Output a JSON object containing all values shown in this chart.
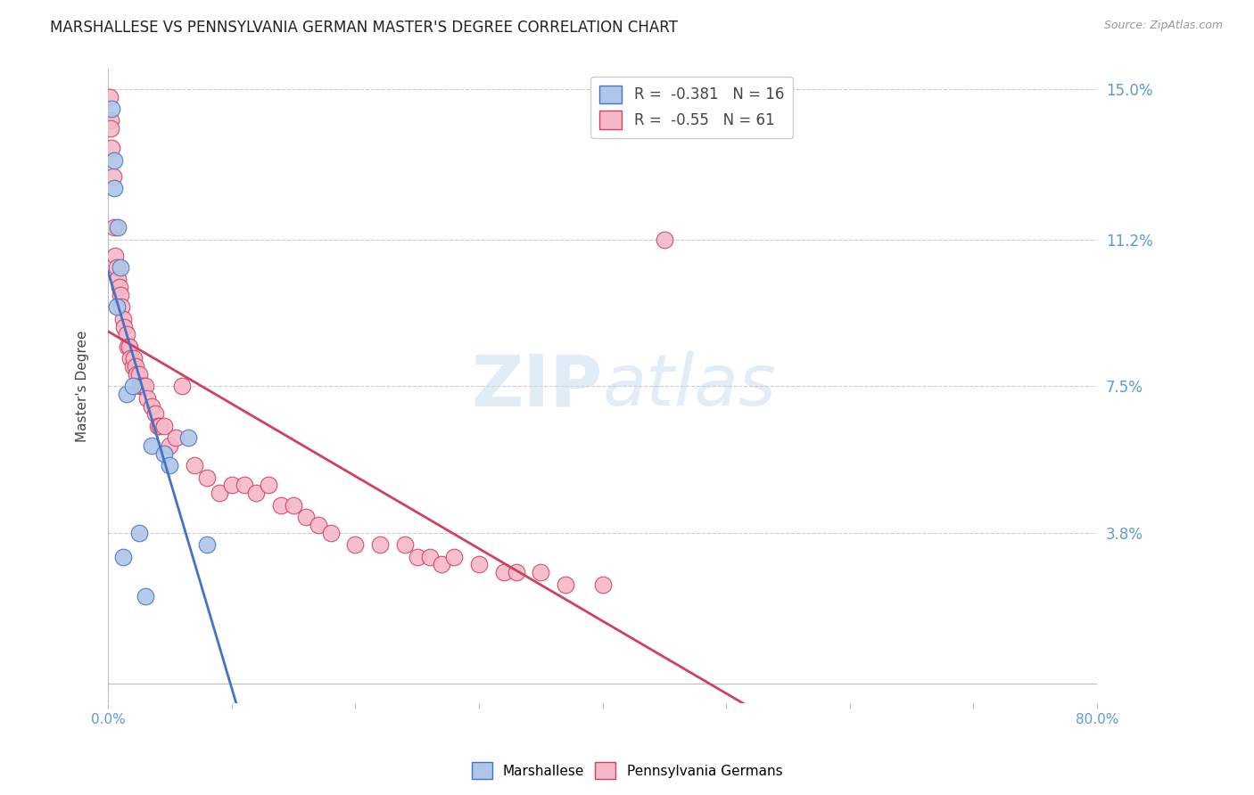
{
  "title": "MARSHALLESE VS PENNSYLVANIA GERMAN MASTER'S DEGREE CORRELATION CHART",
  "source": "Source: ZipAtlas.com",
  "ylabel": "Master's Degree",
  "r_marshallese": -0.381,
  "n_marshallese": 16,
  "r_penn_german": -0.55,
  "n_penn_german": 61,
  "xlim": [
    0.0,
    80.0
  ],
  "ylim": [
    -0.5,
    15.5
  ],
  "ytick_vals": [
    3.8,
    7.5,
    11.2,
    15.0
  ],
  "ytick_labels": [
    "3.8%",
    "7.5%",
    "11.2%",
    "15.0%"
  ],
  "xtick_vals": [
    0.0,
    10.0,
    20.0,
    30.0,
    40.0,
    50.0,
    60.0,
    70.0,
    80.0
  ],
  "xtick_labels": [
    "0.0%",
    "",
    "",
    "",
    "",
    "",
    "",
    "",
    "80.0%"
  ],
  "color_marshallese_fill": "#aec6e8",
  "color_marshallese_edge": "#4472c4",
  "color_penn_fill": "#f4b8c8",
  "color_penn_edge": "#d04060",
  "color_line_blue": "#4472c4",
  "color_line_pink": "#d04060",
  "color_axis_blue": "#5b9bd5",
  "background_color": "#ffffff",
  "marshallese_x": [
    0.3,
    0.5,
    0.5,
    0.7,
    0.8,
    1.0,
    1.5,
    2.0,
    3.5,
    4.5,
    5.0,
    6.5,
    8.0,
    2.5,
    1.2,
    3.0
  ],
  "marshallese_y": [
    14.5,
    13.2,
    12.5,
    9.5,
    11.5,
    10.5,
    7.3,
    7.5,
    6.0,
    5.8,
    5.5,
    6.2,
    3.5,
    3.8,
    3.2,
    2.2
  ],
  "penn_german_x": [
    0.1,
    0.2,
    0.2,
    0.3,
    0.4,
    0.5,
    0.6,
    0.7,
    0.8,
    0.9,
    1.0,
    1.1,
    1.2,
    1.3,
    1.5,
    1.6,
    1.7,
    1.8,
    2.0,
    2.1,
    2.2,
    2.3,
    2.5,
    2.6,
    2.8,
    3.0,
    3.2,
    3.5,
    3.8,
    4.0,
    4.2,
    4.5,
    5.0,
    5.5,
    6.0,
    7.0,
    8.0,
    9.0,
    10.0,
    11.0,
    12.0,
    13.0,
    14.0,
    15.0,
    16.0,
    17.0,
    18.0,
    20.0,
    22.0,
    24.0,
    25.0,
    26.0,
    27.0,
    28.0,
    30.0,
    32.0,
    33.0,
    35.0,
    37.0,
    40.0,
    45.0
  ],
  "penn_german_y": [
    14.8,
    14.2,
    14.0,
    13.5,
    12.8,
    11.5,
    10.8,
    10.5,
    10.2,
    10.0,
    9.8,
    9.5,
    9.2,
    9.0,
    8.8,
    8.5,
    8.5,
    8.2,
    8.0,
    8.2,
    8.0,
    7.8,
    7.8,
    7.5,
    7.5,
    7.5,
    7.2,
    7.0,
    6.8,
    6.5,
    6.5,
    6.5,
    6.0,
    6.2,
    7.5,
    5.5,
    5.2,
    4.8,
    5.0,
    5.0,
    4.8,
    5.0,
    4.5,
    4.5,
    4.2,
    4.0,
    3.8,
    3.5,
    3.5,
    3.5,
    3.2,
    3.2,
    3.0,
    3.2,
    3.0,
    2.8,
    2.8,
    2.8,
    2.5,
    2.5,
    11.2
  ]
}
